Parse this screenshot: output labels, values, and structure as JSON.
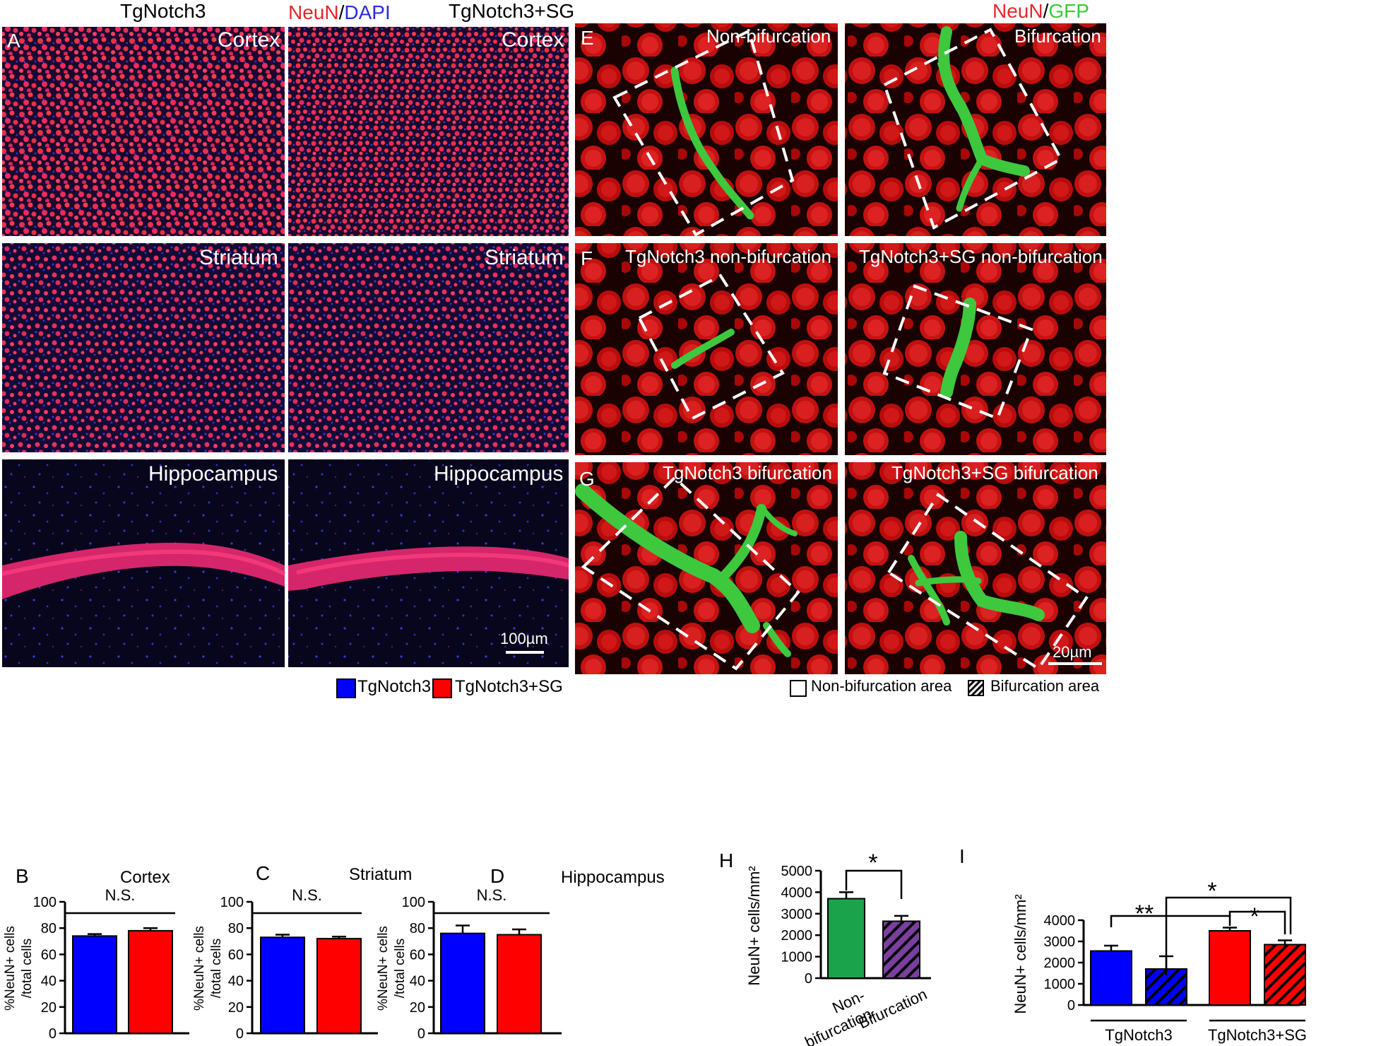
{
  "headers": {
    "left_tg": "TgNotch3",
    "stain_left_neun": "NeuN",
    "stain_left_sep": "/",
    "stain_left_dapi": "DAPI",
    "left_tgsg": "TgNotch3+SG",
    "stain_right_neun": "NeuN",
    "stain_right_sep": "/",
    "stain_right_gfp": "GFP"
  },
  "colors": {
    "neun_red": "#e8262a",
    "dapi_blue": "#2a2ae6",
    "gfp_green": "#33cc33",
    "bar_blue": "#0000ff",
    "bar_red": "#ff0000",
    "bar_green": "#1aa34a",
    "bar_purple": "#7b3fa0"
  },
  "panel_a": {
    "letter": "A",
    "regions": [
      "Cortex",
      "Striatum",
      "Hippocampus"
    ],
    "scale_bar": "100µm"
  },
  "panel_e": {
    "letter": "E",
    "left_title": "Non-bifurcation",
    "right_title": "Bifurcation"
  },
  "panel_f": {
    "letter": "F",
    "left_title": "TgNotch3 non-bifurcation",
    "right_title": "TgNotch3+SG non-bifurcation"
  },
  "panel_g": {
    "letter": "G",
    "left_title": "TgNotch3 bifurcation",
    "right_title": "TgNotch3+SG bifurcation",
    "scale_bar": "20µm"
  },
  "legend_bcd": {
    "items": [
      "TgNotch3",
      "TgNotch3+SG"
    ]
  },
  "legend_i": {
    "items": [
      "Non-bifurcation area",
      "Bifurcation area"
    ]
  },
  "chart_data": [
    {
      "panel": "B",
      "type": "bar",
      "title": "Cortex",
      "ylabel_line1": "%NeuN+ cells",
      "ylabel_line2": "/total cells",
      "categories": [
        "TgNotch3",
        "TgNotch3+SG"
      ],
      "values": [
        74,
        78
      ],
      "errors": [
        1.5,
        2
      ],
      "ylim": [
        0,
        100
      ],
      "yticks": [
        0,
        20,
        40,
        60,
        80,
        100
      ],
      "significance": "N.S."
    },
    {
      "panel": "C",
      "type": "bar",
      "title": "Striatum",
      "ylabel_line1": "%NeuN+ cells",
      "ylabel_line2": "/total cells",
      "categories": [
        "TgNotch3",
        "TgNotch3+SG"
      ],
      "values": [
        73,
        72
      ],
      "errors": [
        2,
        1.5
      ],
      "ylim": [
        0,
        100
      ],
      "yticks": [
        0,
        20,
        40,
        60,
        80,
        100
      ],
      "significance": "N.S."
    },
    {
      "panel": "D",
      "type": "bar",
      "title": "Hippocampus",
      "ylabel_line1": "%NeuN+ cells",
      "ylabel_line2": "/total cells",
      "categories": [
        "TgNotch3",
        "TgNotch3+SG"
      ],
      "values": [
        76,
        75
      ],
      "errors": [
        6,
        4
      ],
      "ylim": [
        0,
        100
      ],
      "yticks": [
        0,
        20,
        40,
        60,
        80,
        100
      ],
      "significance": "N.S."
    },
    {
      "panel": "H",
      "type": "bar",
      "ylabel": "NeuN+ cells/mm²",
      "categories": [
        "Non-bifurcation",
        "Bifurcation"
      ],
      "category_lines": [
        [
          "Non-",
          "bifurcation"
        ],
        [
          "Bifurcation"
        ]
      ],
      "values": [
        3700,
        2650
      ],
      "errors": [
        300,
        250
      ],
      "ylim": [
        0,
        5000
      ],
      "yticks": [
        0,
        1000,
        2000,
        3000,
        4000,
        5000
      ],
      "significance": "*"
    },
    {
      "panel": "I",
      "type": "bar",
      "ylabel": "NeuN+ cells/mm²",
      "groups": [
        "TgNotch3",
        "TgNotch3+SG"
      ],
      "series": [
        {
          "name": "Non-bifurcation area",
          "values": [
            2550,
            3500
          ],
          "errors": [
            250,
            150
          ]
        },
        {
          "name": "Bifurcation area",
          "values": [
            1700,
            2850
          ],
          "errors": [
            600,
            200
          ]
        }
      ],
      "ylim": [
        0,
        4000
      ],
      "yticks": [
        0,
        1000,
        2000,
        3000,
        4000
      ],
      "significance": [
        "**",
        "*",
        "*"
      ]
    }
  ]
}
